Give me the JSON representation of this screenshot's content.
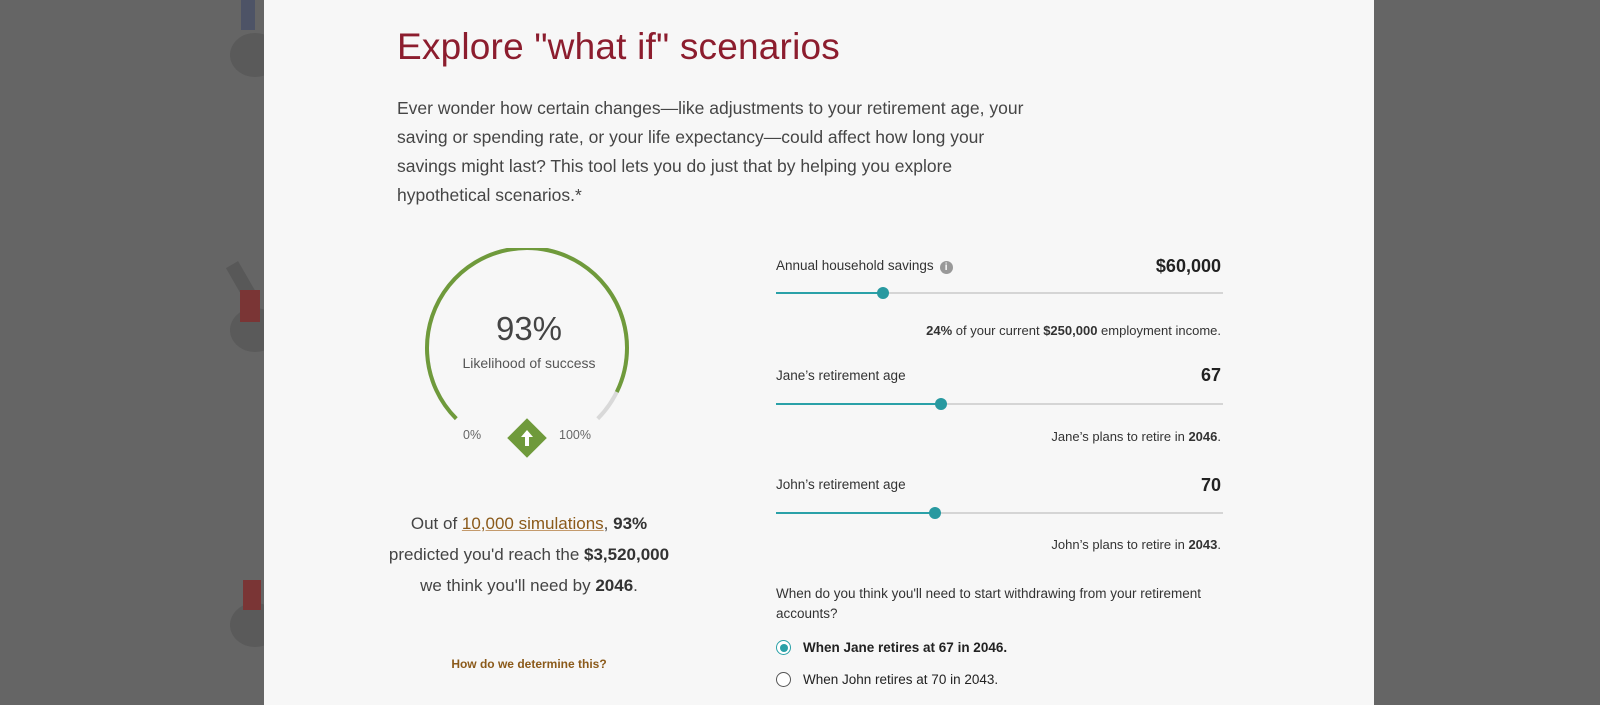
{
  "title": "Explore \"what if\" scenarios",
  "intro": "Ever wonder how certain changes—like adjustments to your retirement age, your saving or spending rate, or your life expectancy—could affect how long your savings might last? This tool lets you do just that by helping you explore hypothetical scenarios.*",
  "gauge": {
    "percent": "93%",
    "label": "Likelihood of success",
    "min_label": "0%",
    "max_label": "100%",
    "value": 0.93,
    "color": "#6f9a3b",
    "arrow_icon": "up-arrow-icon"
  },
  "summary": {
    "p1": "Out of ",
    "link": "10,000 simulations",
    "p2": ", ",
    "pct": "93%",
    "p3": " predicted you'd reach the ",
    "amount": "$3,520,000",
    "p4": " we think you'll need by ",
    "year": "2046",
    "p5": "."
  },
  "how_link": "How do we determine this?",
  "controls": [
    {
      "label": "Annual household savings",
      "value": "$60,000",
      "position": 0.24,
      "note": [
        {
          "t": "24%",
          "b": true
        },
        {
          "t": " of your current ",
          "b": false
        },
        {
          "t": "$250,000",
          "b": true
        },
        {
          "t": " employment income.",
          "b": false
        }
      ]
    },
    {
      "label": "Jane’s retirement age",
      "value": "67",
      "position": 0.37,
      "note": [
        {
          "t": "Jane’s plans to retire in ",
          "b": false
        },
        {
          "t": "2046",
          "b": true
        },
        {
          "t": ".",
          "b": false
        }
      ]
    },
    {
      "label": "John’s retirement age",
      "value": "70",
      "position": 0.355,
      "note": [
        {
          "t": "John’s plans to retire in ",
          "b": false
        },
        {
          "t": "2043",
          "b": true
        },
        {
          "t": ".",
          "b": false
        }
      ]
    }
  ],
  "question": "When do you think you'll need to start withdrawing from your retirement accounts?",
  "options": [
    {
      "label": "When Jane retires at 67 in 2046.",
      "selected": true
    },
    {
      "label": "When John retires at 70 in 2043.",
      "selected": false
    }
  ],
  "nav": {
    "prev_icon": "chevron-left-icon",
    "next_icon": "chevron-right-icon"
  },
  "colors": {
    "title": "#8c1d2e",
    "accent": "#2aa1a8",
    "gauge": "#6f9a3b",
    "link": "#8b5a1a",
    "overlay": "#656565"
  }
}
